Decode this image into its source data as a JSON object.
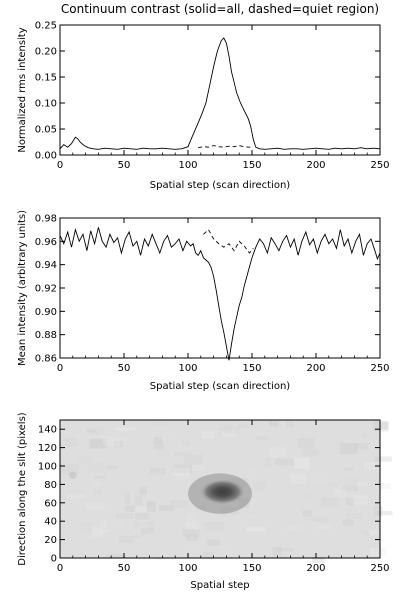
{
  "chart_data": [
    {
      "type": "line",
      "title": "Continuum contrast (solid=all, dashed=quiet region)",
      "xlabel": "Spatial step (scan direction)",
      "ylabel": "Normalized rms intensity",
      "xlim": [
        0,
        250
      ],
      "ylim": [
        0,
        0.25
      ],
      "xticks": [
        "0",
        "50",
        "100",
        "150",
        "200",
        "250"
      ],
      "yticks": [
        "0.00",
        "0.05",
        "0.10",
        "0.15",
        "0.20",
        "0.25"
      ],
      "series": [
        {
          "style": "solid",
          "x": [
            0,
            3,
            6,
            9,
            12,
            14,
            16,
            19,
            22,
            26,
            30,
            35,
            40,
            45,
            50,
            55,
            60,
            65,
            70,
            75,
            80,
            85,
            90,
            95,
            100,
            102,
            105,
            108,
            111,
            114,
            117,
            120,
            123,
            126,
            128,
            130,
            132,
            134,
            136,
            138,
            141,
            144,
            147,
            149,
            151,
            153,
            156,
            160,
            165,
            170,
            175,
            180,
            185,
            190,
            195,
            200,
            205,
            210,
            215,
            220,
            225,
            230,
            235,
            240,
            245,
            250
          ],
          "y": [
            0.012,
            0.02,
            0.015,
            0.022,
            0.034,
            0.031,
            0.024,
            0.018,
            0.014,
            0.012,
            0.011,
            0.013,
            0.012,
            0.011,
            0.013,
            0.012,
            0.011,
            0.013,
            0.012,
            0.012,
            0.013,
            0.012,
            0.011,
            0.012,
            0.016,
            0.028,
            0.045,
            0.062,
            0.08,
            0.1,
            0.135,
            0.17,
            0.2,
            0.22,
            0.225,
            0.215,
            0.19,
            0.16,
            0.14,
            0.12,
            0.1,
            0.085,
            0.07,
            0.055,
            0.03,
            0.015,
            0.012,
            0.011,
            0.012,
            0.013,
            0.011,
            0.012,
            0.012,
            0.011,
            0.012,
            0.013,
            0.012,
            0.011,
            0.013,
            0.012,
            0.013,
            0.012,
            0.014,
            0.012,
            0.013,
            0.012
          ]
        },
        {
          "style": "dashed",
          "x": [
            108,
            112,
            116,
            120,
            124,
            128,
            132,
            136,
            140,
            144,
            148,
            151
          ],
          "y": [
            0.014,
            0.016,
            0.015,
            0.018,
            0.016,
            0.015,
            0.017,
            0.016,
            0.018,
            0.016,
            0.015,
            0.016
          ]
        }
      ]
    },
    {
      "type": "line",
      "title": "",
      "xlabel": "Spatial step (scan direction)",
      "ylabel": "Mean intensity (arbitrary units)",
      "xlim": [
        0,
        250
      ],
      "ylim": [
        0.86,
        0.98
      ],
      "xticks": [
        "0",
        "50",
        "100",
        "150",
        "200",
        "250"
      ],
      "yticks": [
        "0.86",
        "0.88",
        "0.90",
        "0.92",
        "0.94",
        "0.96",
        "0.98"
      ],
      "series": [
        {
          "style": "solid",
          "x": [
            0,
            3,
            6,
            9,
            12,
            15,
            18,
            21,
            24,
            27,
            30,
            33,
            36,
            39,
            42,
            45,
            48,
            51,
            54,
            57,
            60,
            63,
            66,
            69,
            72,
            75,
            78,
            81,
            84,
            87,
            90,
            93,
            96,
            99,
            102,
            104,
            106,
            108,
            110,
            112,
            114,
            116,
            118,
            120,
            122,
            124,
            126,
            128,
            130,
            132,
            134,
            136,
            138,
            140,
            142,
            144,
            146,
            148,
            150,
            153,
            156,
            159,
            162,
            165,
            168,
            171,
            174,
            177,
            180,
            183,
            186,
            189,
            192,
            195,
            198,
            201,
            204,
            207,
            210,
            213,
            216,
            219,
            222,
            225,
            228,
            231,
            234,
            237,
            240,
            243,
            246,
            248,
            250
          ],
          "y": [
            0.965,
            0.958,
            0.968,
            0.955,
            0.97,
            0.96,
            0.966,
            0.952,
            0.969,
            0.958,
            0.972,
            0.96,
            0.955,
            0.966,
            0.959,
            0.963,
            0.95,
            0.962,
            0.968,
            0.956,
            0.96,
            0.948,
            0.962,
            0.956,
            0.966,
            0.958,
            0.95,
            0.96,
            0.965,
            0.955,
            0.958,
            0.962,
            0.952,
            0.96,
            0.956,
            0.958,
            0.95,
            0.948,
            0.952,
            0.946,
            0.944,
            0.942,
            0.938,
            0.93,
            0.918,
            0.905,
            0.892,
            0.882,
            0.87,
            0.858,
            0.872,
            0.885,
            0.895,
            0.905,
            0.912,
            0.922,
            0.93,
            0.938,
            0.946,
            0.955,
            0.962,
            0.958,
            0.95,
            0.963,
            0.958,
            0.952,
            0.96,
            0.965,
            0.955,
            0.962,
            0.948,
            0.96,
            0.968,
            0.957,
            0.962,
            0.95,
            0.96,
            0.966,
            0.958,
            0.962,
            0.954,
            0.97,
            0.956,
            0.962,
            0.95,
            0.96,
            0.966,
            0.948,
            0.958,
            0.962,
            0.952,
            0.945,
            0.95
          ]
        },
        {
          "style": "dashed",
          "x": [
            112,
            116,
            120,
            124,
            128,
            132,
            136,
            140,
            144,
            148,
            151
          ],
          "y": [
            0.966,
            0.97,
            0.962,
            0.958,
            0.955,
            0.958,
            0.952,
            0.96,
            0.956,
            0.95,
            0.954
          ]
        }
      ]
    },
    {
      "type": "heatmap",
      "title": "",
      "xlabel": "Spatial step",
      "ylabel": "Direction along the slit (pixels)",
      "xlim": [
        0,
        250
      ],
      "ylim": [
        0,
        150
      ],
      "xticks": [
        "0",
        "50",
        "100",
        "150",
        "200",
        "250"
      ],
      "yticks": [
        "0",
        "20",
        "40",
        "60",
        "80",
        "100",
        "120",
        "140"
      ],
      "colormap": "grayscale, dark = low intensity",
      "features": [
        {
          "kind": "sunspot",
          "x": 127,
          "y": 72,
          "rx": 18,
          "ry": 14,
          "intensity": 0.1
        },
        {
          "kind": "penumbra",
          "x": 125,
          "y": 70,
          "rx": 25,
          "ry": 22,
          "intensity": 0.55
        },
        {
          "kind": "pore",
          "x": 10,
          "y": 90,
          "rx": 3,
          "ry": 4,
          "intensity": 0.8
        }
      ]
    }
  ]
}
